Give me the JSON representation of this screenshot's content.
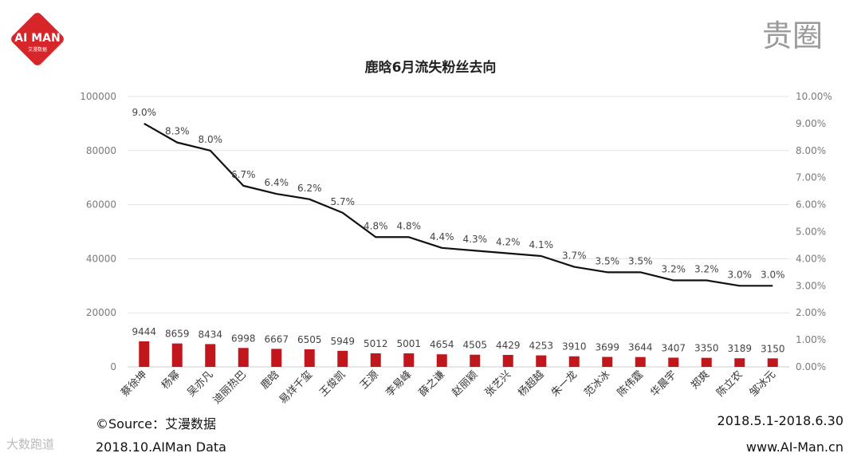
{
  "logo_text": "AI MAN",
  "logo_subtext": "艾漫数据",
  "brand_mark": "贵圈",
  "footer": {
    "source": "©Source：艾漫数据",
    "date_range": "2018.5.1-2018.6.30",
    "left": "2018.10.AIMan Data",
    "right": "www.AI-Man.cn",
    "watermark_tag": "大数跑道"
  },
  "colors": {
    "bar": "#c0161c",
    "line": "#111111",
    "logo": "#d7262a"
  },
  "chart_data": {
    "type": "bar",
    "title": "鹿晗6月流失粉丝去向",
    "categories": [
      "蔡徐坤",
      "杨幂",
      "吴亦凡",
      "迪丽热巴",
      "鹿晗",
      "易烊千玺",
      "王俊凯",
      "王源",
      "李易峰",
      "薛之谦",
      "赵丽颖",
      "张艺兴",
      "杨超越",
      "朱一龙",
      "范冰冰",
      "陈伟霆",
      "华晨宇",
      "郑爽",
      "陈立农",
      "邹冰元"
    ],
    "y_left": {
      "min": 0,
      "max": 100000,
      "ticks": [
        0,
        20000,
        40000,
        60000,
        80000,
        100000
      ]
    },
    "y_right": {
      "min": 0,
      "max": 10,
      "ticks": [
        "0.00%",
        "1.00%",
        "2.00%",
        "3.00%",
        "4.00%",
        "5.00%",
        "6.00%",
        "7.00%",
        "8.00%",
        "9.00%",
        "10.00%"
      ]
    },
    "series": [
      {
        "type": "bar",
        "axis": "left",
        "values": [
          9444,
          8659,
          8434,
          6998,
          6667,
          6505,
          5949,
          5012,
          5001,
          4654,
          4505,
          4429,
          4253,
          3910,
          3699,
          3644,
          3407,
          3350,
          3189,
          3150
        ]
      },
      {
        "type": "line",
        "axis": "right",
        "values": [
          9.0,
          8.3,
          8.0,
          6.7,
          6.4,
          6.2,
          5.7,
          4.8,
          4.8,
          4.4,
          4.3,
          4.2,
          4.1,
          3.7,
          3.5,
          3.5,
          3.2,
          3.2,
          3.0,
          3.0
        ],
        "labels": [
          "9.0%",
          "8.3%",
          "8.0%",
          "6.7%",
          "6.4%",
          "6.2%",
          "5.7%",
          "4.8%",
          "4.8%",
          "4.4%",
          "4.3%",
          "4.2%",
          "4.1%",
          "3.7%",
          "3.5%",
          "3.5%",
          "3.2%",
          "3.2%",
          "3.0%",
          "3.0%"
        ]
      }
    ],
    "grid": true,
    "legend": "none"
  }
}
